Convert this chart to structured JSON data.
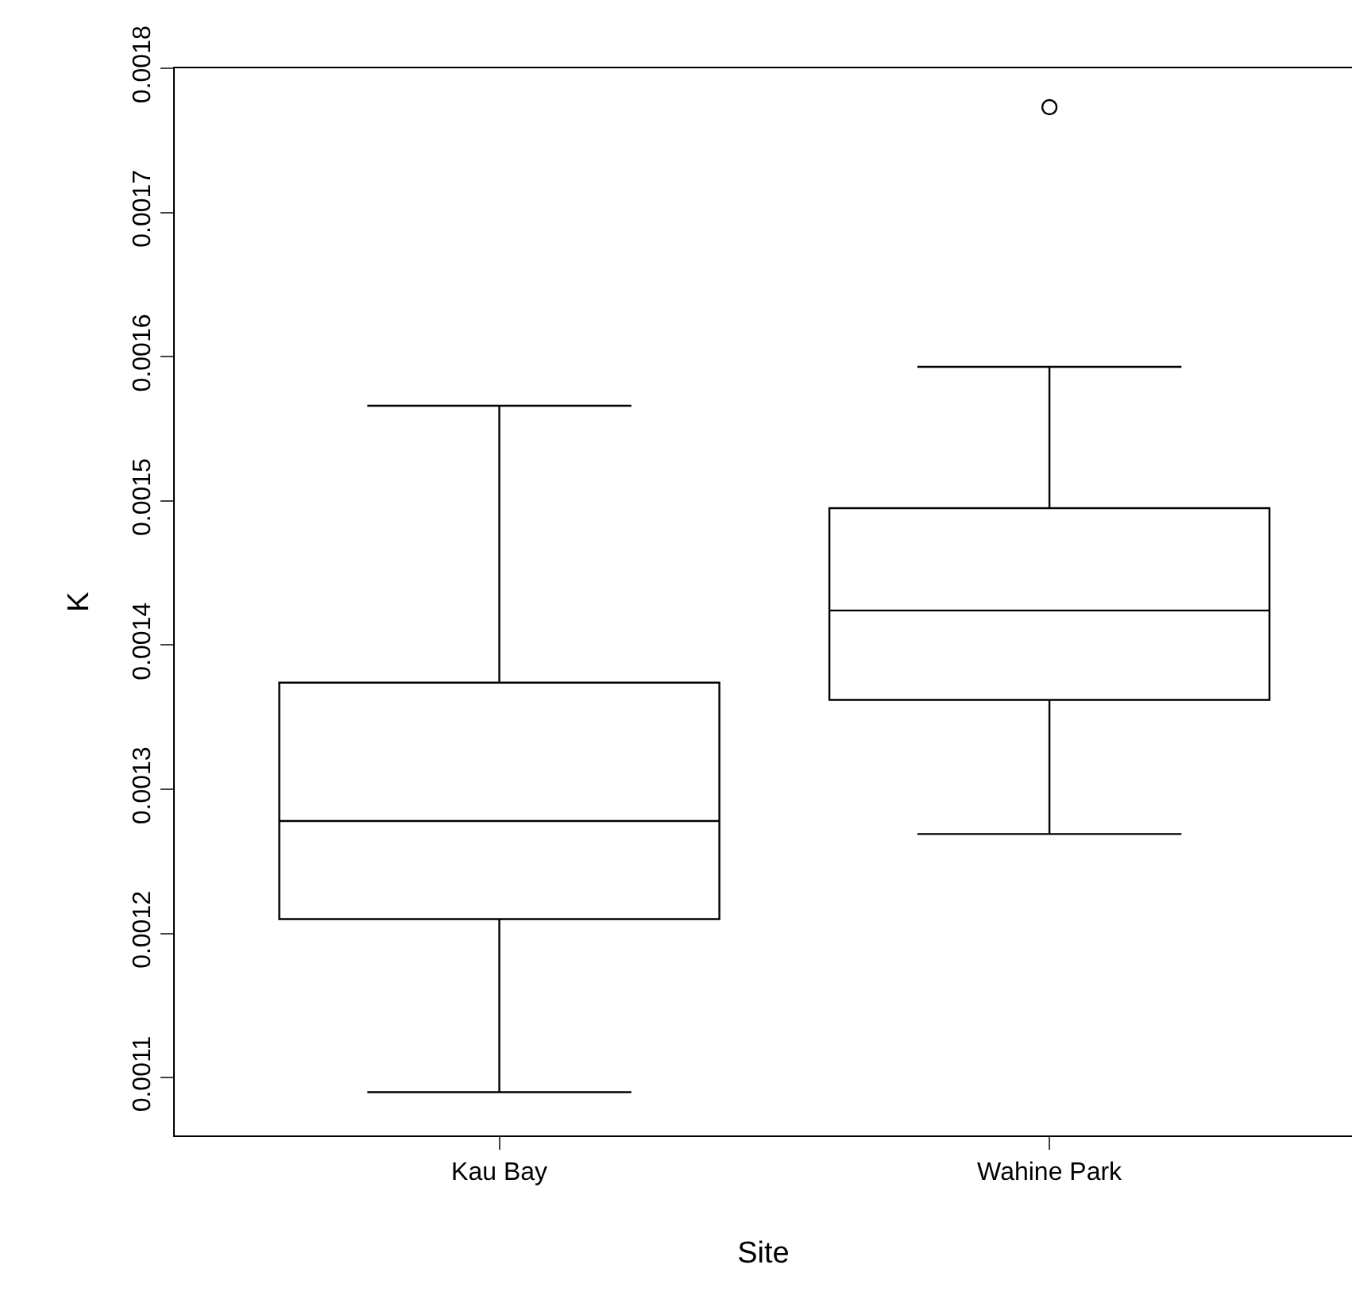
{
  "chart_data": {
    "type": "box",
    "xlabel": "Site",
    "ylabel": "K",
    "categories": [
      "Kau Bay",
      "Wahine Park"
    ],
    "color": "#000000",
    "boxes": [
      {
        "low": 0.00109,
        "q1": 0.00121,
        "median": 0.001278,
        "q3": 0.001374,
        "high": 0.001566
      },
      {
        "low": 0.001269,
        "q1": 0.001362,
        "median": 0.001424,
        "q3": 0.001495,
        "high": 0.001593,
        "outliers": [
          0.001773
        ]
      }
    ],
    "ylim": [
      0.00106,
      0.0018
    ],
    "yticks": [
      0.0011,
      0.0012,
      0.0013,
      0.0014,
      0.0015,
      0.0016,
      0.0017,
      0.0018
    ],
    "marker": "circle"
  }
}
